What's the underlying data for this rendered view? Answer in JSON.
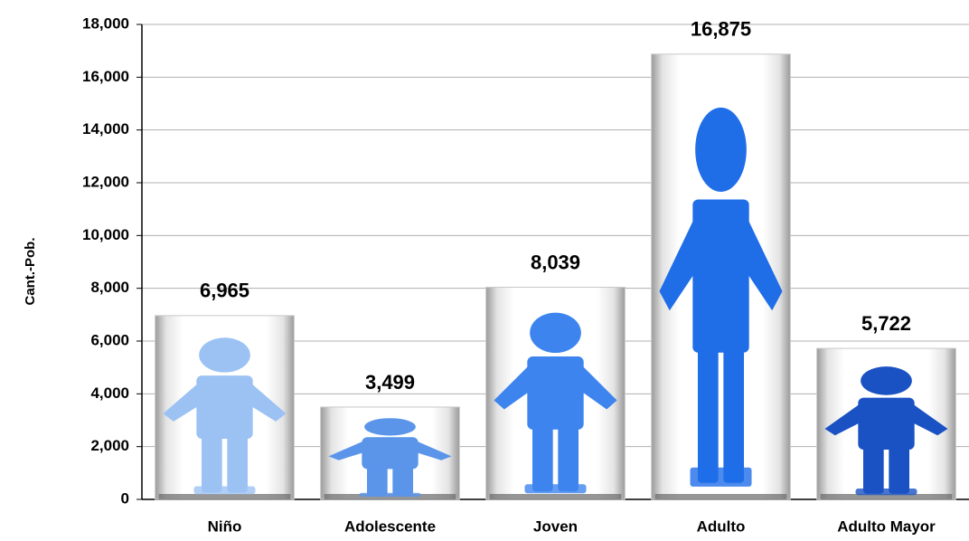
{
  "chart_data": {
    "type": "bar",
    "y_axis_label": "Cant.-Pob.",
    "categories": [
      "Niño",
      "Adolescente",
      "Joven",
      "Adulto",
      "Adulto Mayor"
    ],
    "values": [
      6965,
      3499,
      8039,
      16875,
      5722
    ],
    "value_labels": [
      "6,965",
      "3,499",
      "8,039",
      "16,875",
      "5,722"
    ],
    "colors": [
      "#9cc2f4",
      "#5a95ea",
      "#3d84ee",
      "#1f6ee8",
      "#1a52c4"
    ],
    "ylim": [
      0,
      18000
    ],
    "yticks": [
      0,
      {
        "value": 2000,
        "label": "2,000"
      },
      {
        "value": 4000,
        "label": "4,000"
      },
      {
        "value": 6000,
        "label": "6,000"
      },
      {
        "value": 8000,
        "label": "8,000"
      },
      {
        "value": 10000,
        "label": "10,000"
      },
      {
        "value": 12000,
        "label": "12,000"
      },
      {
        "value": 14000,
        "label": "14,000"
      },
      {
        "value": 16000,
        "label": "16,000"
      },
      {
        "value": 18000,
        "label": "18,000"
      }
    ],
    "grid": true
  }
}
